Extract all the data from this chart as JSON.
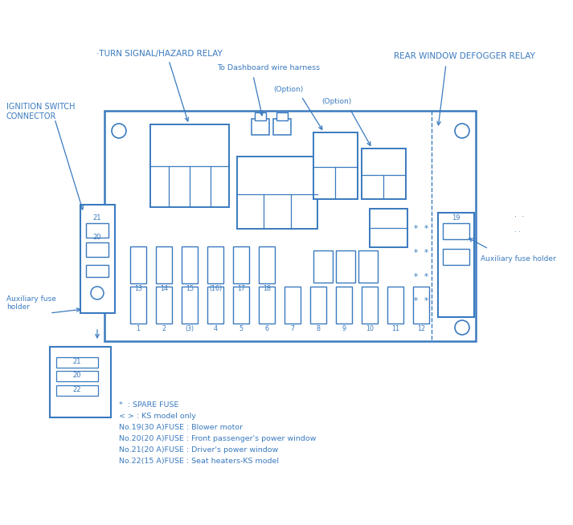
{
  "bg_color": "#ffffff",
  "line_color": "#3a7abf",
  "fig_width": 7.13,
  "fig_height": 6.54,
  "labels": {
    "turn_signal": "·TURN SIGNAL/HAZARD RELAY",
    "dashboard": "To Dashboard wire harness",
    "option1": "(Option)",
    "option2": "(Option)",
    "ignition": "IGNITION SWITCH\nCONNECTOR",
    "rear_window": "REAR WINDOW DEFOGGER RELAY",
    "aux_left": "Auxiliary fuse\nholder",
    "aux_right": "Auxiliary fuse holder"
  },
  "legend_lines": [
    "*  : SPARE FUSE",
    "< > : KS model only",
    "No.19(30 A)FUSE : Blower motor",
    "No.20(20 A)FUSE : Front passenger's power window",
    "No.21(20 A)FUSE : Driver's power window",
    "No.22(15 A)FUSE : Seat heaters-KS model"
  ],
  "fuse_numbers_bottom": [
    "1",
    "2",
    "(3)",
    "4",
    "5",
    "6",
    "7",
    "8",
    "9",
    "10",
    "11",
    "12"
  ],
  "fuse_numbers_top": [
    "13",
    "14",
    "15",
    "(16)",
    "17",
    "18"
  ],
  "aux_fuse_labels": [
    "21",
    "20",
    "22"
  ]
}
